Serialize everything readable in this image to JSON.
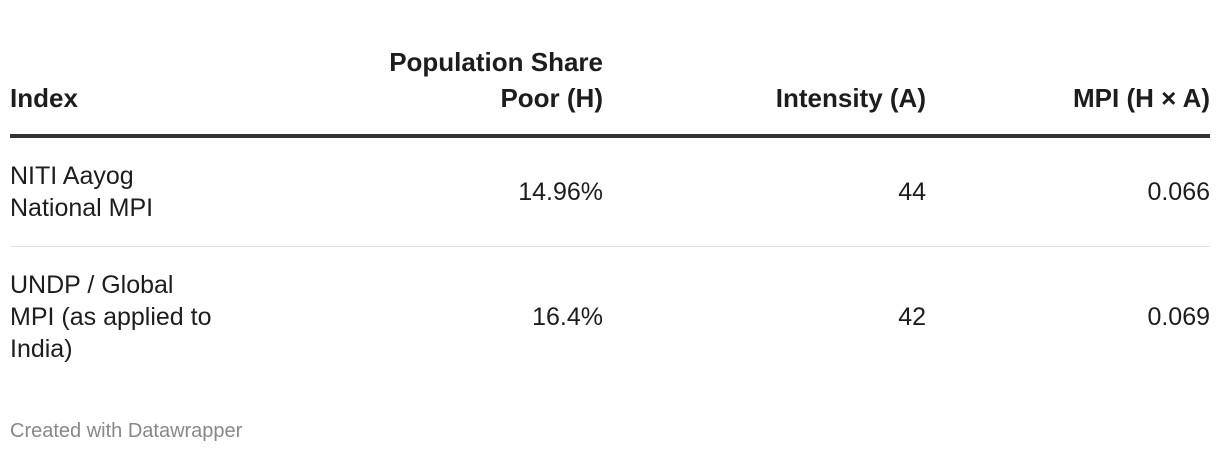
{
  "table": {
    "columns": [
      "Index",
      "Population Share Poor (H)",
      "Intensity (A)",
      "MPI (H × A)"
    ],
    "rows": [
      [
        "NITI Aayog National MPI",
        "14.96%",
        "44",
        "0.066"
      ],
      [
        "UNDP / Global MPI (as applied to India)",
        "16.4%",
        "42",
        "0.069"
      ]
    ]
  },
  "footer": {
    "credit": "Created with Datawrapper"
  }
}
